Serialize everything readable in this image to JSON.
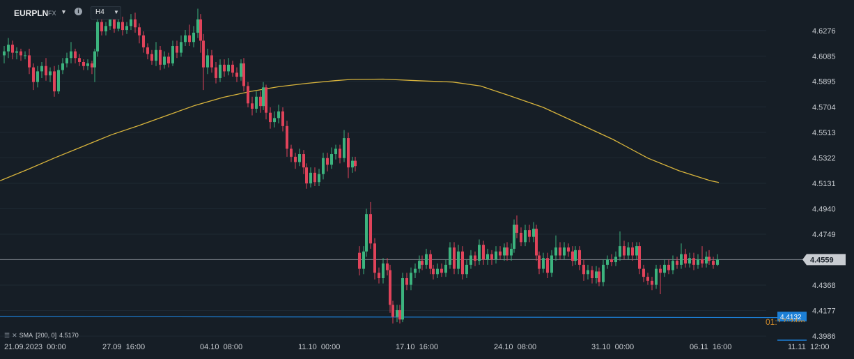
{
  "header": {
    "symbol": "EURPLN",
    "symbol_type": "FX",
    "timeframe": "H4",
    "info_icon": "info-icon",
    "dropdown_icon": "chevron-down-icon"
  },
  "indicator_legend": {
    "name": "SMA",
    "params": "[200,  0]",
    "value": "4.5170",
    "icons": [
      "settings-icon",
      "close-icon"
    ]
  },
  "colors": {
    "background": "#161e26",
    "grid": "#1f2933",
    "up_candle": "#3cb37e",
    "down_candle": "#e0435a",
    "sma_line": "#d8b43c",
    "price_line": "#7d848c",
    "blue_line": "#1c7fd6",
    "axis_text": "#c8ccd1",
    "price_label_bg": "#c8ccd1",
    "blue_label_bg": "#1c7fd6"
  },
  "chart_data": {
    "type": "candlestick",
    "symbol": "EURPLN",
    "timeframe": "H4",
    "y_ticks": [
      "4.6276",
      "4.6085",
      "4.5895",
      "4.5704",
      "4.5513",
      "4.5322",
      "4.5131",
      "4.4940",
      "4.4749",
      "4.4368",
      "4.4177",
      "4.3986"
    ],
    "ylim": [
      4.3955,
      4.6505
    ],
    "x_ticks": [
      "21.09.2023  00:00",
      "27.09  16:00",
      "04.10  08:00",
      "11.10  00:00",
      "17.10  16:00",
      "24.10  08:00",
      "31.10  00:00",
      "06.11  16:00",
      "11.11  12:00"
    ],
    "current_price": 4.4559,
    "current_price_label": "4.4559",
    "blue_level": 4.4132,
    "blue_level_label": "4.4132",
    "blue_level_countdown": "01:17:24m",
    "sma": {
      "name": "SMA",
      "period": 200,
      "value_label": "4.5170",
      "points": [
        [
          0,
          4.515
        ],
        [
          40,
          4.5235
        ],
        [
          80,
          4.5325
        ],
        [
          120,
          4.541
        ],
        [
          160,
          4.5495
        ],
        [
          200,
          4.5565
        ],
        [
          240,
          4.564
        ],
        [
          280,
          4.5715
        ],
        [
          320,
          4.5775
        ],
        [
          360,
          4.582
        ],
        [
          400,
          4.5855
        ],
        [
          440,
          4.588
        ],
        [
          480,
          4.59
        ],
        [
          505,
          4.591
        ],
        [
          550,
          4.5912
        ],
        [
          600,
          4.59
        ],
        [
          650,
          4.589
        ],
        [
          690,
          4.586
        ],
        [
          730,
          4.579
        ],
        [
          780,
          4.57
        ],
        [
          830,
          4.558
        ],
        [
          880,
          4.546
        ],
        [
          930,
          4.532
        ],
        [
          975,
          4.5225
        ],
        [
          1020,
          4.515
        ],
        [
          1032,
          4.5137
        ]
      ]
    },
    "series_up_color": "#3cb37e",
    "series_down_color": "#e0435a",
    "candles": [
      [
        6,
        4.609,
        4.612,
        4.616,
        4.603
      ],
      [
        12,
        4.612,
        4.617,
        4.622,
        4.607
      ],
      [
        18,
        4.617,
        4.611,
        4.62,
        4.606
      ],
      [
        24,
        4.611,
        4.612,
        4.615,
        4.606
      ],
      [
        30,
        4.612,
        4.609,
        4.614,
        4.605
      ],
      [
        36,
        4.609,
        4.609,
        4.612,
        4.606
      ],
      [
        42,
        4.609,
        4.6,
        4.614,
        4.595
      ],
      [
        48,
        4.6,
        4.589,
        4.603,
        4.583
      ],
      [
        54,
        4.589,
        4.597,
        4.601,
        4.585
      ],
      [
        60,
        4.597,
        4.601,
        4.604,
        4.592
      ],
      [
        66,
        4.601,
        4.594,
        4.607,
        4.59
      ],
      [
        72,
        4.594,
        4.597,
        4.6,
        4.589
      ],
      [
        78,
        4.597,
        4.582,
        4.601,
        4.578
      ],
      [
        84,
        4.582,
        4.598,
        4.602,
        4.58
      ],
      [
        90,
        4.598,
        4.603,
        4.607,
        4.595
      ],
      [
        96,
        4.603,
        4.607,
        4.611,
        4.6
      ],
      [
        102,
        4.607,
        4.612,
        4.619,
        4.603
      ],
      [
        108,
        4.612,
        4.607,
        4.614,
        4.603
      ],
      [
        114,
        4.607,
        4.604,
        4.61,
        4.601
      ],
      [
        120,
        4.604,
        4.601,
        4.606,
        4.598
      ],
      [
        126,
        4.601,
        4.603,
        4.606,
        4.598
      ],
      [
        132,
        4.603,
        4.6,
        4.605,
        4.595
      ],
      [
        136,
        4.6,
        4.612,
        4.614,
        4.589
      ],
      [
        140,
        4.612,
        4.634,
        4.64,
        4.608
      ],
      [
        146,
        4.634,
        4.627,
        4.637,
        4.624
      ],
      [
        152,
        4.627,
        4.631,
        4.634,
        4.624
      ],
      [
        158,
        4.631,
        4.637,
        4.641,
        4.628
      ],
      [
        164,
        4.637,
        4.629,
        4.64,
        4.626
      ],
      [
        170,
        4.629,
        4.634,
        4.638,
        4.627
      ],
      [
        176,
        4.634,
        4.628,
        4.638,
        4.624
      ],
      [
        182,
        4.628,
        4.631,
        4.634,
        4.625
      ],
      [
        188,
        4.631,
        4.636,
        4.64,
        4.628
      ],
      [
        194,
        4.636,
        4.63,
        4.641,
        4.626
      ],
      [
        200,
        4.63,
        4.624,
        4.633,
        4.618
      ],
      [
        206,
        4.624,
        4.615,
        4.627,
        4.611
      ],
      [
        212,
        4.615,
        4.61,
        4.618,
        4.606
      ],
      [
        218,
        4.61,
        4.605,
        4.613,
        4.602
      ],
      [
        224,
        4.605,
        4.613,
        4.619,
        4.601
      ],
      [
        230,
        4.613,
        4.602,
        4.616,
        4.598
      ],
      [
        236,
        4.602,
        4.608,
        4.612,
        4.599
      ],
      [
        242,
        4.608,
        4.603,
        4.611,
        4.6
      ],
      [
        248,
        4.603,
        4.616,
        4.62,
        4.601
      ],
      [
        254,
        4.616,
        4.611,
        4.62,
        4.607
      ],
      [
        260,
        4.611,
        4.619,
        4.624,
        4.608
      ],
      [
        266,
        4.619,
        4.624,
        4.628,
        4.616
      ],
      [
        272,
        4.624,
        4.619,
        4.632,
        4.616
      ],
      [
        278,
        4.619,
        4.626,
        4.631,
        4.615
      ],
      [
        284,
        4.626,
        4.636,
        4.644,
        4.622
      ],
      [
        288,
        4.636,
        4.62,
        4.64,
        4.611
      ],
      [
        292,
        4.62,
        4.6,
        4.625,
        4.583
      ],
      [
        298,
        4.6,
        4.609,
        4.614,
        4.595
      ],
      [
        304,
        4.609,
        4.6,
        4.613,
        4.596
      ],
      [
        310,
        4.6,
        4.592,
        4.604,
        4.588
      ],
      [
        316,
        4.592,
        4.602,
        4.606,
        4.589
      ],
      [
        322,
        4.602,
        4.597,
        4.606,
        4.593
      ],
      [
        328,
        4.597,
        4.602,
        4.607,
        4.594
      ],
      [
        334,
        4.602,
        4.596,
        4.605,
        4.593
      ],
      [
        340,
        4.596,
        4.593,
        4.6,
        4.589
      ],
      [
        346,
        4.593,
        4.603,
        4.606,
        4.59
      ],
      [
        350,
        4.603,
        4.586,
        4.607,
        4.582
      ],
      [
        356,
        4.586,
        4.573,
        4.589,
        4.57
      ],
      [
        362,
        4.573,
        4.569,
        4.578,
        4.564
      ],
      [
        368,
        4.569,
        4.578,
        4.582,
        4.566
      ],
      [
        374,
        4.578,
        4.571,
        4.582,
        4.566
      ],
      [
        378,
        4.571,
        4.585,
        4.589,
        4.568
      ],
      [
        382,
        4.585,
        4.566,
        4.587,
        4.561
      ],
      [
        388,
        4.566,
        4.559,
        4.57,
        4.554
      ],
      [
        394,
        4.559,
        4.562,
        4.567,
        4.555
      ],
      [
        400,
        4.562,
        4.567,
        4.572,
        4.558
      ],
      [
        406,
        4.567,
        4.556,
        4.57,
        4.552
      ],
      [
        412,
        4.556,
        4.539,
        4.56,
        4.533
      ],
      [
        418,
        4.539,
        4.533,
        4.542,
        4.529
      ],
      [
        424,
        4.533,
        4.529,
        4.536,
        4.524
      ],
      [
        430,
        4.529,
        4.535,
        4.539,
        4.526
      ],
      [
        436,
        4.535,
        4.525,
        4.538,
        4.52
      ],
      [
        440,
        4.525,
        4.513,
        4.528,
        4.509
      ],
      [
        446,
        4.513,
        4.521,
        4.525,
        4.51
      ],
      [
        452,
        4.521,
        4.514,
        4.525,
        4.511
      ],
      [
        458,
        4.514,
        4.52,
        4.524,
        4.511
      ],
      [
        464,
        4.52,
        4.532,
        4.536,
        4.516
      ],
      [
        470,
        4.532,
        4.527,
        4.536,
        4.522
      ],
      [
        476,
        4.527,
        4.535,
        4.54,
        4.524
      ],
      [
        482,
        4.535,
        4.539,
        4.542,
        4.531
      ],
      [
        488,
        4.539,
        4.532,
        4.542,
        4.528
      ],
      [
        494,
        4.532,
        4.547,
        4.553,
        4.529
      ],
      [
        500,
        4.547,
        4.525,
        4.551,
        4.517
      ],
      [
        506,
        4.525,
        4.53,
        4.533,
        4.521
      ],
      [
        510,
        4.53,
        4.526,
        4.533,
        4.522
      ],
      [
        516,
        4.461,
        4.449,
        4.466,
        4.444
      ],
      [
        522,
        4.449,
        4.462,
        4.466,
        4.445
      ],
      [
        526,
        4.462,
        4.49,
        4.494,
        4.458
      ],
      [
        532,
        4.49,
        4.468,
        4.499,
        4.464
      ],
      [
        538,
        4.468,
        4.446,
        4.472,
        4.441
      ],
      [
        544,
        4.446,
        4.442,
        4.45,
        4.438
      ],
      [
        550,
        4.442,
        4.453,
        4.457,
        4.438
      ],
      [
        556,
        4.453,
        4.448,
        4.457,
        4.444
      ],
      [
        560,
        4.448,
        4.422,
        4.452,
        4.416
      ],
      [
        564,
        4.422,
        4.413,
        4.425,
        4.408
      ],
      [
        570,
        4.413,
        4.418,
        4.422,
        4.409
      ],
      [
        574,
        4.418,
        4.411,
        4.422,
        4.408
      ],
      [
        578,
        4.411,
        4.442,
        4.446,
        4.409
      ],
      [
        584,
        4.442,
        4.437,
        4.446,
        4.433
      ],
      [
        590,
        4.437,
        4.446,
        4.45,
        4.433
      ],
      [
        596,
        4.446,
        4.449,
        4.453,
        4.442
      ],
      [
        602,
        4.449,
        4.455,
        4.459,
        4.446
      ],
      [
        606,
        4.455,
        4.452,
        4.459,
        4.448
      ],
      [
        612,
        4.452,
        4.46,
        4.464,
        4.449
      ],
      [
        618,
        4.46,
        4.449,
        4.463,
        4.445
      ],
      [
        622,
        4.449,
        4.445,
        4.452,
        4.441
      ],
      [
        628,
        4.445,
        4.449,
        4.453,
        4.442
      ],
      [
        634,
        4.449,
        4.446,
        4.453,
        4.443
      ],
      [
        640,
        4.446,
        4.452,
        4.456,
        4.443
      ],
      [
        646,
        4.452,
        4.465,
        4.469,
        4.449
      ],
      [
        652,
        4.465,
        4.449,
        4.469,
        4.445
      ],
      [
        658,
        4.449,
        4.462,
        4.467,
        4.445
      ],
      [
        664,
        4.462,
        4.445,
        4.466,
        4.441
      ],
      [
        670,
        4.445,
        4.452,
        4.456,
        4.442
      ],
      [
        676,
        4.452,
        4.459,
        4.463,
        4.449
      ],
      [
        682,
        4.459,
        4.455,
        4.462,
        4.451
      ],
      [
        688,
        4.455,
        4.467,
        4.471,
        4.452
      ],
      [
        694,
        4.467,
        4.456,
        4.47,
        4.452
      ],
      [
        700,
        4.456,
        4.46,
        4.464,
        4.452
      ],
      [
        706,
        4.46,
        4.456,
        4.463,
        4.452
      ],
      [
        712,
        4.456,
        4.462,
        4.466,
        4.453
      ],
      [
        718,
        4.462,
        4.459,
        4.466,
        4.456
      ],
      [
        724,
        4.459,
        4.465,
        4.468,
        4.455
      ],
      [
        728,
        4.465,
        4.459,
        4.469,
        4.455
      ],
      [
        734,
        4.459,
        4.464,
        4.468,
        4.455
      ],
      [
        738,
        4.464,
        4.482,
        4.486,
        4.461
      ],
      [
        742,
        4.482,
        4.476,
        4.489,
        4.472
      ],
      [
        748,
        4.476,
        4.469,
        4.48,
        4.466
      ],
      [
        754,
        4.469,
        4.478,
        4.482,
        4.466
      ],
      [
        760,
        4.478,
        4.473,
        4.482,
        4.469
      ],
      [
        766,
        4.473,
        4.479,
        4.484,
        4.469
      ],
      [
        770,
        4.479,
        4.459,
        4.482,
        4.455
      ],
      [
        774,
        4.459,
        4.449,
        4.462,
        4.445
      ],
      [
        780,
        4.449,
        4.457,
        4.461,
        4.446
      ],
      [
        786,
        4.457,
        4.446,
        4.461,
        4.442
      ],
      [
        792,
        4.446,
        4.459,
        4.463,
        4.443
      ],
      [
        798,
        4.459,
        4.465,
        4.474,
        4.455
      ],
      [
        804,
        4.465,
        4.459,
        4.469,
        4.456
      ],
      [
        810,
        4.459,
        4.465,
        4.469,
        4.456
      ],
      [
        816,
        4.465,
        4.462,
        4.468,
        4.458
      ],
      [
        822,
        4.462,
        4.455,
        4.466,
        4.451
      ],
      [
        826,
        4.455,
        4.463,
        4.466,
        4.452
      ],
      [
        832,
        4.463,
        4.452,
        4.466,
        4.448
      ],
      [
        838,
        4.452,
        4.445,
        4.456,
        4.44
      ],
      [
        844,
        4.445,
        4.448,
        4.452,
        4.441
      ],
      [
        850,
        4.448,
        4.442,
        4.451,
        4.438
      ],
      [
        856,
        4.442,
        4.447,
        4.451,
        4.438
      ],
      [
        860,
        4.447,
        4.439,
        4.45,
        4.436
      ],
      [
        866,
        4.439,
        4.452,
        4.456,
        4.436
      ],
      [
        872,
        4.452,
        4.456,
        4.459,
        4.449
      ],
      [
        878,
        4.456,
        4.454,
        4.46,
        4.451
      ],
      [
        884,
        4.454,
        4.458,
        4.462,
        4.451
      ],
      [
        890,
        4.458,
        4.466,
        4.477,
        4.455
      ],
      [
        896,
        4.466,
        4.459,
        4.47,
        4.456
      ],
      [
        902,
        4.459,
        4.465,
        4.469,
        4.456
      ],
      [
        908,
        4.465,
        4.459,
        4.469,
        4.455
      ],
      [
        914,
        4.459,
        4.466,
        4.469,
        4.456
      ],
      [
        918,
        4.466,
        4.449,
        4.469,
        4.445
      ],
      [
        924,
        4.449,
        4.443,
        4.452,
        4.439
      ],
      [
        930,
        4.443,
        4.44,
        4.446,
        4.437
      ],
      [
        936,
        4.44,
        4.437,
        4.443,
        4.433
      ],
      [
        942,
        4.437,
        4.449,
        4.452,
        4.434
      ],
      [
        948,
        4.449,
        4.446,
        4.452,
        4.43
      ],
      [
        954,
        4.446,
        4.452,
        4.456,
        4.443
      ],
      [
        960,
        4.452,
        4.448,
        4.456,
        4.445
      ],
      [
        966,
        4.448,
        4.455,
        4.459,
        4.445
      ],
      [
        972,
        4.455,
        4.452,
        4.458,
        4.449
      ],
      [
        978,
        4.452,
        4.46,
        4.468,
        4.449
      ],
      [
        984,
        4.46,
        4.453,
        4.464,
        4.45
      ],
      [
        990,
        4.453,
        4.457,
        4.461,
        4.45
      ],
      [
        996,
        4.457,
        4.452,
        4.461,
        4.448
      ],
      [
        1002,
        4.452,
        4.456,
        4.46,
        4.449
      ],
      [
        1008,
        4.456,
        4.453,
        4.466,
        4.45
      ],
      [
        1014,
        4.453,
        4.458,
        4.462,
        4.45
      ],
      [
        1018,
        4.458,
        4.455,
        4.463,
        4.452
      ],
      [
        1024,
        4.455,
        4.452,
        4.458,
        4.449
      ],
      [
        1030,
        4.452,
        4.456,
        4.46,
        4.451
      ]
    ]
  }
}
